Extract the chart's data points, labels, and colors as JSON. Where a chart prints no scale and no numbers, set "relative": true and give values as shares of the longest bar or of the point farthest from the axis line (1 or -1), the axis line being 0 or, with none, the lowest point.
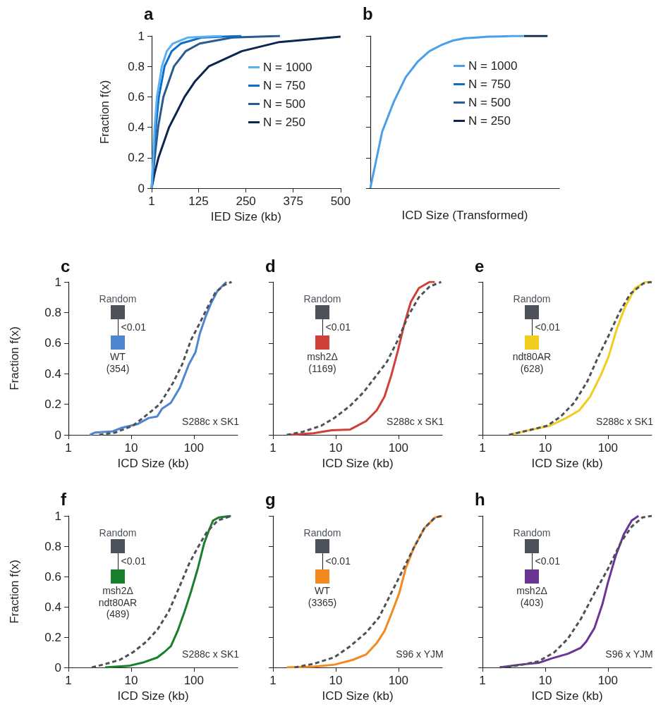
{
  "chart_data": [
    {
      "type": "line",
      "title": "a",
      "xlabel": "IED Size (kb)",
      "ylabel": "Fraction f(x)",
      "xlim": [
        1,
        500
      ],
      "xticks": [
        1,
        125,
        250,
        375,
        500
      ],
      "ylim": [
        0,
        1
      ],
      "yticks": [
        0,
        0.2,
        0.4,
        0.6,
        0.8,
        1
      ],
      "legend": "right",
      "series": [
        {
          "name": "N = 1000",
          "color": "#5aaff0",
          "x": [
            1,
            9,
            15,
            28,
            41,
            57,
            97,
            186
          ],
          "values": [
            0,
            0.4,
            0.6,
            0.8,
            0.9,
            0.95,
            0.99,
            1.0
          ]
        },
        {
          "name": "N = 750",
          "color": "#0a6fc9",
          "x": [
            1,
            12,
            20,
            35,
            54,
            78,
            134,
            238
          ],
          "values": [
            0,
            0.4,
            0.6,
            0.8,
            0.9,
            0.95,
            0.99,
            1.0
          ]
        },
        {
          "name": "N = 500",
          "color": "#2a5a90",
          "x": [
            1,
            9,
            18,
            32,
            60,
            91,
            128,
            214,
            340
          ],
          "values": [
            0,
            0.2,
            0.4,
            0.6,
            0.8,
            0.9,
            0.95,
            0.99,
            1.0
          ]
        },
        {
          "name": "N = 250",
          "color": "#0b2550",
          "x": [
            1,
            9,
            19,
            47,
            88,
            115,
            152,
            239,
            338,
            500
          ],
          "values": [
            0,
            0.1,
            0.2,
            0.4,
            0.6,
            0.7,
            0.8,
            0.9,
            0.96,
            0.995
          ]
        }
      ]
    },
    {
      "type": "line",
      "title": "b",
      "xlabel": "ICD Size (Transformed)",
      "categories": [
        null,
        null,
        null,
        null,
        null,
        null,
        null,
        null,
        null,
        null,
        null,
        null,
        null,
        null,
        null,
        null,
        null
      ],
      "relative": true,
      "tick_labels": false,
      "legend": "right",
      "series": [
        {
          "name": "N = 1000",
          "color": "#4a9fea",
          "values": [
            0,
            0.37,
            0.57,
            0.73,
            0.83,
            0.9,
            0.94,
            0.97,
            0.985,
            0.99,
            0.995,
            0.997,
            1,
            1,
            null,
            null,
            null
          ]
        },
        {
          "name": "N = 750",
          "color": "#0a6fc9",
          "values": [
            null,
            null,
            null,
            null,
            null,
            null,
            null,
            null,
            null,
            null,
            null,
            null,
            null,
            null,
            null,
            null,
            null
          ]
        },
        {
          "name": "N = 500",
          "color": "#2a5a90",
          "values": [
            null,
            null,
            null,
            null,
            null,
            null,
            null,
            null,
            null,
            null,
            null,
            null,
            null,
            null,
            null,
            null,
            null
          ]
        },
        {
          "name": "N = 250",
          "color": "#0b2550",
          "values": [
            null,
            null,
            null,
            null,
            null,
            null,
            null,
            null,
            null,
            null,
            null,
            null,
            null,
            1,
            1,
            1,
            null
          ]
        }
      ]
    },
    {
      "type": "line",
      "title": "c",
      "xlabel": "ICD Size (kb)",
      "ylabel": "Fraction f(x)",
      "log": "x",
      "xlim": [
        1,
        500
      ],
      "xticks": [
        1,
        10,
        100
      ],
      "ylim": [
        0,
        1
      ],
      "yticks": [
        0,
        0.2,
        0.4,
        0.6,
        0.8,
        1
      ],
      "legend": "top left",
      "annotations": [
        "<0.01",
        "S288c x SK1"
      ],
      "series": [
        {
          "name": "Random",
          "color": "#4d5159",
          "line_style": "dashed",
          "x": [
            3.1,
            5.6,
            10.7,
            19,
            28.5,
            46.5,
            65,
            90,
            124,
            159,
            220,
            305,
            400
          ],
          "values": [
            0,
            0.015,
            0.06,
            0.14,
            0.2,
            0.34,
            0.46,
            0.62,
            0.73,
            0.82,
            0.93,
            0.98,
            1.0
          ]
        },
        {
          "name": "WT\n(354)",
          "color": "#4f86cf",
          "line_style": "solid",
          "x": [
            2.2,
            2.67,
            5.1,
            7.1,
            12.6,
            19,
            26,
            31,
            43,
            60,
            83,
            106,
            124,
            153,
            188,
            237,
            330
          ],
          "values": [
            0,
            0.015,
            0.023,
            0.046,
            0.07,
            0.11,
            0.12,
            0.17,
            0.21,
            0.31,
            0.46,
            0.54,
            0.66,
            0.77,
            0.86,
            0.94,
            1.0
          ]
        }
      ]
    },
    {
      "type": "line",
      "title": "d",
      "xlabel": "ICD Size (kb)",
      "log": "x",
      "xlim": [
        1,
        500
      ],
      "xticks": [
        1,
        10,
        100
      ],
      "ylim": [
        0,
        1
      ],
      "yticks": [
        0,
        0.2,
        0.4,
        0.6,
        0.8,
        1
      ],
      "tick_labels": "x",
      "legend": "top left",
      "annotations": [
        "<0.01",
        "S288c x SK1"
      ],
      "series": [
        {
          "name": "Random",
          "color": "#4d5159",
          "line_style": "dashed",
          "x": [
            1.66,
            3,
            5.9,
            9.5,
            17,
            28,
            45,
            66,
            98,
            144,
            212,
            315,
            480
          ],
          "values": [
            0,
            0.02,
            0.06,
            0.11,
            0.19,
            0.28,
            0.39,
            0.48,
            0.62,
            0.78,
            0.9,
            0.97,
            1.0
          ]
        },
        {
          "name": "msh2Δ\n(1169)",
          "color": "#d0403a",
          "line_style": "solid",
          "x": [
            1.92,
            4.4,
            8.6,
            17,
            30.5,
            45,
            60,
            77,
            98,
            125,
            158,
            212,
            315,
            380
          ],
          "values": [
            0,
            0.01,
            0.03,
            0.035,
            0.09,
            0.16,
            0.25,
            0.39,
            0.55,
            0.73,
            0.87,
            0.96,
            1.0,
            1.0
          ]
        }
      ]
    },
    {
      "type": "line",
      "title": "e",
      "xlabel": "ICD Size (kb)",
      "log": "x",
      "xlim": [
        1,
        500
      ],
      "xticks": [
        1,
        10,
        100
      ],
      "ylim": [
        0,
        1
      ],
      "yticks": [
        0,
        0.2,
        0.4,
        0.6,
        0.8,
        1
      ],
      "tick_labels": "x",
      "legend": "top left",
      "annotations": [
        "<0.01",
        "S288c x SK1"
      ],
      "series": [
        {
          "name": "Random",
          "color": "#4d5159",
          "line_style": "dashed",
          "x": [
            2.65,
            5.5,
            10.9,
            17.7,
            29,
            47,
            70,
            103,
            152,
            225,
            366,
            500
          ],
          "values": [
            0,
            0.03,
            0.06,
            0.12,
            0.21,
            0.35,
            0.51,
            0.65,
            0.8,
            0.92,
            0.99,
            1.0
          ]
        },
        {
          "name": "ndt80AR\n(628)",
          "color": "#f2cd1f",
          "line_style": "solid",
          "x": [
            2.65,
            5.5,
            12,
            21.6,
            35,
            52,
            77,
            102,
            138,
            185,
            272,
            400,
            480
          ],
          "values": [
            0,
            0.03,
            0.06,
            0.11,
            0.16,
            0.25,
            0.39,
            0.51,
            0.69,
            0.83,
            0.96,
            1.0,
            1.0
          ]
        }
      ]
    },
    {
      "type": "line",
      "title": "f",
      "xlabel": "ICD Size (kb)",
      "ylabel": "Fraction f(x)",
      "log": "x",
      "xlim": [
        1,
        500
      ],
      "xticks": [
        1,
        10,
        100
      ],
      "ylim": [
        0,
        1
      ],
      "yticks": [
        0,
        0.2,
        0.4,
        0.6,
        0.8,
        1
      ],
      "legend": "top left",
      "annotations": [
        "<0.01",
        "S288c x SK1"
      ],
      "series": [
        {
          "name": "Random",
          "color": "#4d5159",
          "line_style": "dashed",
          "x": [
            2.36,
            3.7,
            6.6,
            10.7,
            17.5,
            26.3,
            39.8,
            60,
            83,
            115,
            159,
            240,
            400
          ],
          "values": [
            0,
            0.02,
            0.05,
            0.1,
            0.17,
            0.25,
            0.37,
            0.54,
            0.68,
            0.79,
            0.89,
            0.97,
            1.0
          ]
        },
        {
          "name": "msh2Δ\nndt80AR\n(489)",
          "color": "#1a7f2a",
          "line_style": "solid",
          "x": [
            3.85,
            9.1,
            16,
            26,
            33.5,
            43,
            55,
            70,
            90,
            115,
            146,
            172,
            203,
            250,
            390
          ],
          "values": [
            0,
            0.01,
            0.034,
            0.065,
            0.1,
            0.14,
            0.24,
            0.36,
            0.5,
            0.65,
            0.82,
            0.9,
            0.97,
            0.99,
            1.0
          ]
        }
      ]
    },
    {
      "type": "line",
      "title": "g",
      "xlabel": "ICD Size (kb)",
      "log": "x",
      "xlim": [
        1,
        500
      ],
      "xticks": [
        1,
        10,
        100
      ],
      "ylim": [
        0,
        1
      ],
      "yticks": [
        0,
        0.2,
        0.4,
        0.6,
        0.8,
        1
      ],
      "tick_labels": "x",
      "legend": "top left",
      "annotations": [
        "<0.01",
        "S96 x YJM"
      ],
      "series": [
        {
          "name": "Random",
          "color": "#4d5159",
          "line_style": "dashed",
          "x": [
            2.2,
            4.4,
            9.5,
            17,
            30.5,
            49,
            81,
            120,
            176,
            260,
            385,
            500
          ],
          "values": [
            0,
            0.023,
            0.067,
            0.14,
            0.23,
            0.33,
            0.51,
            0.65,
            0.79,
            0.92,
            0.99,
            1.0
          ]
        },
        {
          "name": "WT\n(3365)",
          "color": "#f4891f",
          "line_style": "solid",
          "x": [
            1.66,
            4.4,
            9.5,
            18.8,
            30.5,
            45,
            60,
            80,
            103,
            130,
            176,
            260,
            385,
            500
          ],
          "values": [
            0,
            0.005,
            0.018,
            0.05,
            0.085,
            0.16,
            0.24,
            0.37,
            0.49,
            0.65,
            0.79,
            0.92,
            0.99,
            1.0
          ]
        }
      ]
    },
    {
      "type": "line",
      "title": "h",
      "xlabel": "ICD Size (kb)",
      "log": "x",
      "xlim": [
        1,
        500
      ],
      "xticks": [
        1,
        10,
        100
      ],
      "ylim": [
        0,
        1
      ],
      "yticks": [
        0,
        0.2,
        0.4,
        0.6,
        0.8,
        1
      ],
      "tick_labels": "x",
      "legend": "top left",
      "annotations": [
        "<0.01",
        "S96 x YJM"
      ],
      "series": [
        {
          "name": "Random",
          "color": "#4d5159",
          "line_style": "dashed",
          "x": [
            1.89,
            3.9,
            7.8,
            14,
            23,
            37,
            61,
            100,
            163,
            240,
            355,
            500
          ],
          "values": [
            0,
            0.014,
            0.04,
            0.1,
            0.19,
            0.32,
            0.49,
            0.65,
            0.83,
            0.93,
            0.99,
            1.0
          ]
        },
        {
          "name": "msh2Δ\n(403)",
          "color": "#6b3596",
          "line_style": "solid",
          "x": [
            1.89,
            3.9,
            7.8,
            12.8,
            23,
            37,
            45,
            61,
            82,
            100,
            134,
            180,
            240,
            307
          ],
          "values": [
            0,
            0.018,
            0.03,
            0.06,
            0.09,
            0.13,
            0.17,
            0.26,
            0.42,
            0.56,
            0.74,
            0.88,
            0.97,
            1.0
          ]
        }
      ]
    }
  ]
}
